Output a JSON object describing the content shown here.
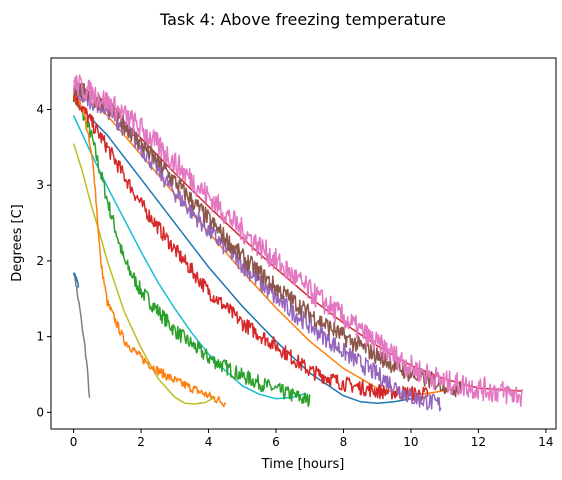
{
  "chart_data": {
    "type": "line",
    "title": "Task 4: Above freezing temperature",
    "xlabel": "Time [hours]",
    "ylabel": "Degrees [C]",
    "xlim": [
      -0.67,
      14.3
    ],
    "ylim": [
      -0.22,
      4.68
    ],
    "xticks": [
      "0",
      "2",
      "4",
      "6",
      "8",
      "10",
      "12",
      "14"
    ],
    "yticks": [
      "0",
      "1",
      "2",
      "3",
      "4"
    ],
    "grid": false,
    "series": [
      {
        "color": "#17becf",
        "x": [
          0,
          0.5,
          1,
          1.5,
          2,
          2.5,
          3,
          3.5,
          4,
          4.5,
          5,
          5.5,
          6,
          6.5,
          6.9
        ],
        "y": [
          3.92,
          3.44,
          2.98,
          2.55,
          2.12,
          1.72,
          1.37,
          1.05,
          0.77,
          0.55,
          0.35,
          0.24,
          0.18,
          0.2,
          0.25
        ]
      },
      {
        "color": "#bcbd22",
        "x": [
          0,
          0.25,
          0.5,
          0.75,
          1,
          1.5,
          2,
          2.5,
          3,
          3.3,
          3.6,
          3.9,
          4.2
        ],
        "y": [
          3.55,
          3.2,
          2.77,
          2.4,
          2.0,
          1.33,
          0.85,
          0.45,
          0.2,
          0.12,
          0.11,
          0.13,
          0.2
        ]
      },
      {
        "color": "#1f77b4",
        "x": [
          0,
          1,
          2,
          3,
          4,
          5,
          6,
          7,
          8,
          8.5,
          9,
          9.5,
          10,
          10.4
        ],
        "y": [
          4.12,
          3.66,
          3.08,
          2.5,
          1.92,
          1.4,
          0.94,
          0.52,
          0.22,
          0.14,
          0.12,
          0.14,
          0.18,
          0.2
        ]
      },
      {
        "color": "#ff7f0e",
        "x": [
          0,
          1,
          2,
          3,
          4,
          5,
          6,
          7,
          8,
          9,
          10,
          10.6,
          11.2
        ],
        "y": [
          4.28,
          3.92,
          3.4,
          2.88,
          2.38,
          1.86,
          1.38,
          0.94,
          0.58,
          0.32,
          0.22,
          0.26,
          0.3
        ]
      },
      {
        "color": "#d62728",
        "x": [
          0,
          1,
          2,
          3,
          4,
          5,
          6,
          7,
          8,
          9,
          10,
          11,
          12,
          13.3
        ],
        "y": [
          4.38,
          4.05,
          3.62,
          3.16,
          2.72,
          2.3,
          1.9,
          1.52,
          1.18,
          0.88,
          0.62,
          0.44,
          0.32,
          0.28
        ]
      },
      {
        "color": "#2ca02c",
        "noise": 0.1,
        "x": [
          0,
          0.5,
          1,
          1.5,
          2,
          3,
          4,
          5,
          6,
          7
        ],
        "y": [
          4.2,
          3.7,
          2.8,
          2.0,
          1.6,
          1.08,
          0.72,
          0.48,
          0.3,
          0.15
        ]
      },
      {
        "color": "#ff7f0e",
        "noise": 0.06,
        "x": [
          0,
          0.3,
          0.6,
          0.8,
          1,
          1.5,
          2,
          2.5,
          3,
          3.5,
          4,
          4.5
        ],
        "y": [
          4.2,
          4.0,
          3.2,
          2.0,
          1.45,
          0.95,
          0.72,
          0.55,
          0.42,
          0.32,
          0.22,
          0.12
        ]
      },
      {
        "color": "#d62728",
        "noise": 0.1,
        "x": [
          0,
          1,
          2,
          3,
          4,
          5,
          6,
          7,
          8,
          9,
          10,
          10.5
        ],
        "y": [
          4.2,
          3.5,
          2.75,
          2.15,
          1.6,
          1.18,
          0.88,
          0.55,
          0.38,
          0.28,
          0.25,
          0.24
        ]
      },
      {
        "color": "#9467bd",
        "noise": 0.12,
        "x": [
          0,
          1,
          2,
          3,
          4,
          5,
          6,
          7,
          8,
          9,
          10,
          10.9
        ],
        "y": [
          4.25,
          4.0,
          3.5,
          2.9,
          2.4,
          1.95,
          1.5,
          1.15,
          0.8,
          0.5,
          0.2,
          0.1
        ]
      },
      {
        "color": "#8c564b",
        "noise": 0.12,
        "x": [
          0,
          1,
          2,
          3,
          4,
          5,
          6,
          7,
          8,
          9,
          10,
          11.5
        ],
        "y": [
          4.3,
          4.05,
          3.55,
          3.05,
          2.55,
          2.05,
          1.65,
          1.3,
          1.0,
          0.75,
          0.5,
          0.3
        ]
      },
      {
        "color": "#e377c2",
        "noise": 0.16,
        "x": [
          0,
          1,
          2,
          3,
          4,
          5,
          6,
          7,
          8,
          9,
          10,
          11,
          12,
          13.3
        ],
        "y": [
          4.35,
          4.1,
          3.75,
          3.3,
          2.85,
          2.4,
          2.0,
          1.6,
          1.25,
          0.9,
          0.6,
          0.4,
          0.32,
          0.22
        ]
      },
      {
        "color": "#7f7f7f",
        "noise": 0.04,
        "x": [
          0,
          0.1,
          0.2,
          0.3,
          0.4,
          0.47
        ],
        "y": [
          1.85,
          1.6,
          1.3,
          1.0,
          0.6,
          0.2
        ]
      },
      {
        "color": "#1f77b4",
        "noise": 0.02,
        "x": [
          0,
          0.1,
          0.15
        ],
        "y": [
          1.85,
          1.75,
          1.65
        ]
      }
    ]
  }
}
